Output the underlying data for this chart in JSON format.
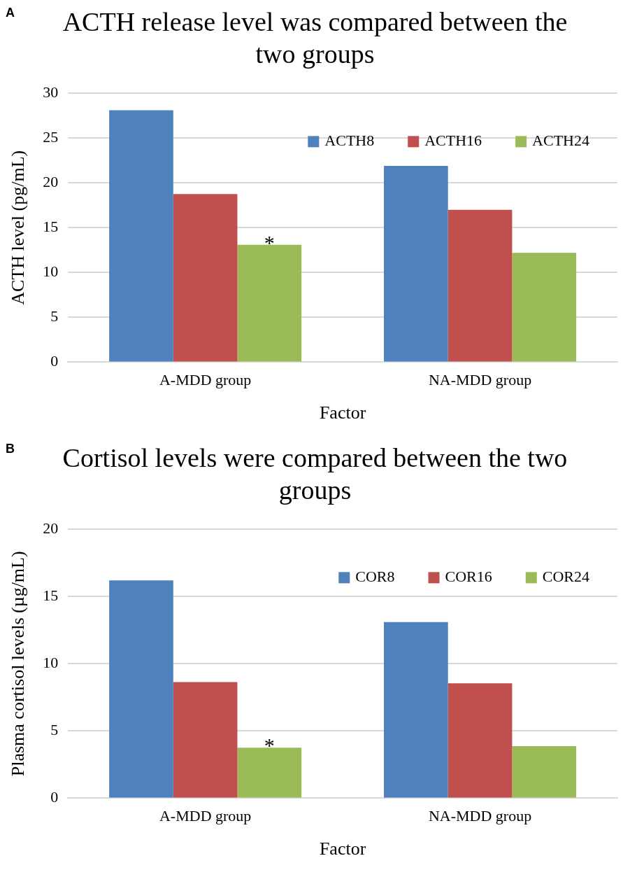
{
  "chart_data": [
    {
      "type": "bar",
      "title": "ACTH release level was compared between the two groups",
      "xlabel": "Factor",
      "ylabel": "ACTH level (pg/mL)",
      "categories": [
        "A-MDD group",
        "NA-MDD group"
      ],
      "series": [
        {
          "name": "ACTH8",
          "color": "#4f81bd",
          "values": [
            28.1,
            21.9
          ]
        },
        {
          "name": "ACTH16",
          "color": "#c0504d",
          "values": [
            18.75,
            17.0
          ]
        },
        {
          "name": "ACTH24",
          "color": "#9bbb59",
          "values": [
            13.1,
            12.2
          ]
        }
      ],
      "ylim": [
        0,
        30
      ],
      "yticks": [
        0,
        5,
        10,
        15,
        20,
        25,
        30
      ],
      "grid": "y",
      "legend": "top right",
      "annotations": [
        "A",
        "*"
      ]
    },
    {
      "type": "bar",
      "title": "Cortisol levels were compared between the two groups",
      "xlabel": "Factor",
      "ylabel": "Plasma cortisol levels (µg/mL)",
      "categories": [
        "A-MDD group",
        "NA-MDD group"
      ],
      "series": [
        {
          "name": "COR8",
          "color": "#4f81bd",
          "values": [
            16.2,
            13.1
          ]
        },
        {
          "name": "COR16",
          "color": "#c0504d",
          "values": [
            8.64,
            8.55
          ]
        },
        {
          "name": "COR24",
          "color": "#9bbb59",
          "values": [
            3.76,
            3.87
          ]
        }
      ],
      "ylim": [
        0,
        20
      ],
      "yticks": [
        0,
        5,
        10,
        15,
        20
      ],
      "grid": "y",
      "legend": "top right",
      "annotations": [
        "B",
        "*"
      ]
    }
  ]
}
